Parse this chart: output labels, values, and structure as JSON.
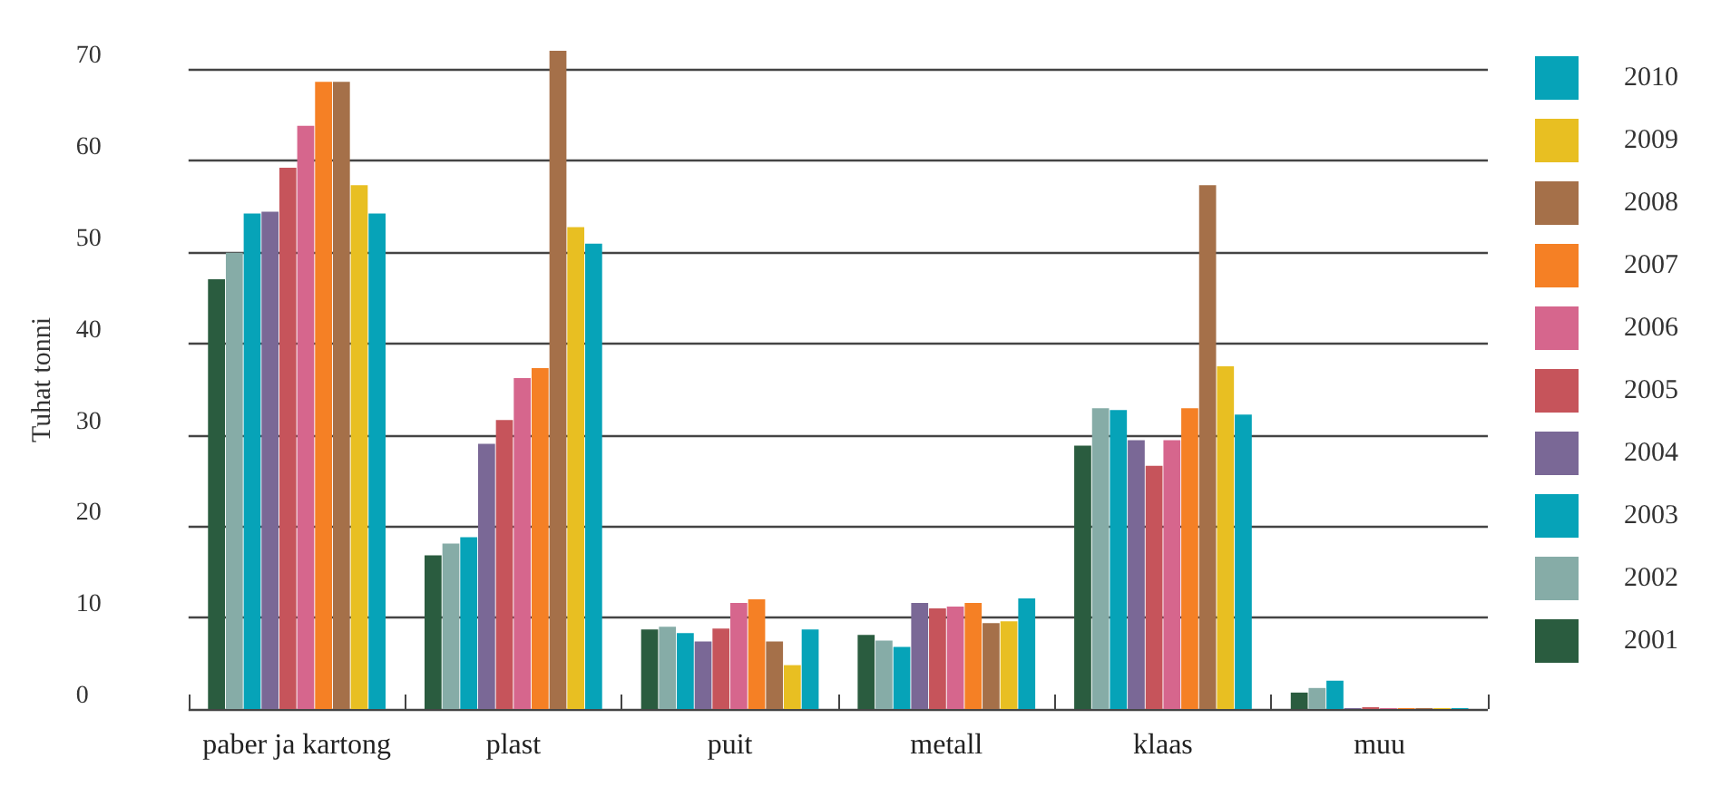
{
  "chart_data": {
    "type": "bar",
    "ylabel": "Tuhat tonni",
    "categories": [
      "paber ja kartong",
      "plast",
      "puit",
      "metall",
      "klaas",
      "muu"
    ],
    "series": [
      {
        "name": "2001",
        "color": "#2a5c3f",
        "values": [
          47.0,
          16.8,
          8.7,
          8.1,
          28.8,
          1.8
        ]
      },
      {
        "name": "2002",
        "color": "#86aca7",
        "values": [
          49.9,
          18.1,
          9.0,
          7.5,
          32.9,
          2.3
        ]
      },
      {
        "name": "2003",
        "color": "#06a3b8",
        "values": [
          54.2,
          18.8,
          8.3,
          6.8,
          32.7,
          3.1
        ]
      },
      {
        "name": "2004",
        "color": "#7a6896",
        "values": [
          54.4,
          29.0,
          7.4,
          11.6,
          29.4,
          0.1
        ]
      },
      {
        "name": "2005",
        "color": "#c6545b",
        "values": [
          59.2,
          31.6,
          8.8,
          11.0,
          26.6,
          0.2
        ]
      },
      {
        "name": "2006",
        "color": "#d6668d",
        "values": [
          63.8,
          36.2,
          11.6,
          11.2,
          29.4,
          0.1
        ]
      },
      {
        "name": "2007",
        "color": "#f58025",
        "values": [
          68.6,
          37.3,
          12.0,
          11.6,
          32.9,
          0.1
        ]
      },
      {
        "name": "2008",
        "color": "#a57049",
        "values": [
          68.6,
          72.0,
          7.4,
          9.4,
          57.3,
          0.1
        ]
      },
      {
        "name": "2009",
        "color": "#e8bf22",
        "values": [
          57.3,
          52.7,
          4.8,
          9.6,
          37.5,
          0.1
        ]
      },
      {
        "name": "2010",
        "color": "#06a3b8",
        "values": [
          54.2,
          50.9,
          8.7,
          12.1,
          32.2,
          0.1
        ]
      }
    ],
    "ylim": [
      0,
      72
    ],
    "yticks": [
      0,
      10,
      20,
      30,
      40,
      50,
      60,
      70
    ],
    "grid": "y",
    "legend": "right"
  }
}
